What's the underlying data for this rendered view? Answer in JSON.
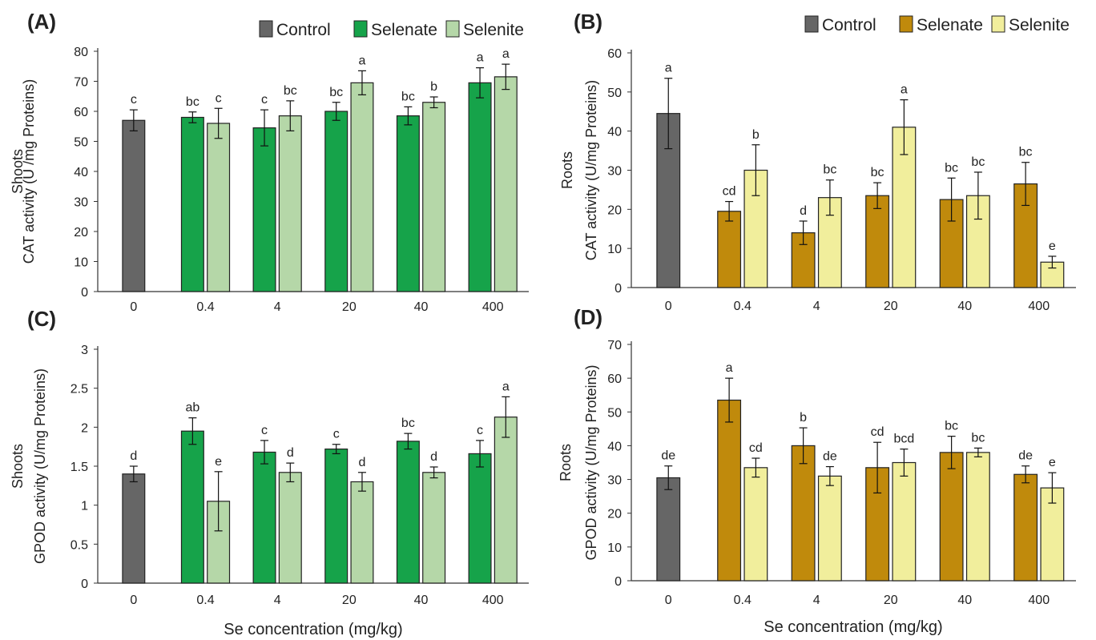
{
  "figure": {
    "xlabel": "Se concentration (mg/kg)",
    "categories": [
      "0",
      "0.4",
      "4",
      "20",
      "40",
      "400"
    ],
    "colors": {
      "control": "#666666",
      "selenate_green": "#16a34a",
      "selenite_green": "#b5d7a8",
      "selenate_brown": "#c08a0c",
      "selenite_yellow": "#f1ee9c",
      "axis": "#333333"
    }
  },
  "chart_data": [
    {
      "id": "A",
      "panel_label": "(A)",
      "type": "bar",
      "ylabel_line1": "Shoots",
      "ylabel_line2": "CAT activity (U /mg Proteins)",
      "ylim": [
        0,
        80
      ],
      "yticks": [
        "0",
        "10",
        "20",
        "30",
        "40",
        "50",
        "60",
        "70",
        "80"
      ],
      "legend": [
        "Control",
        "Selenate",
        "Selenite"
      ],
      "legend_position": "top",
      "control": {
        "value": 57,
        "error": 3.5,
        "letter": "c"
      },
      "series": [
        {
          "name": "Selenate",
          "values": [
            58,
            54.5,
            60,
            58.5,
            69.5
          ],
          "errors": [
            1.8,
            6,
            3,
            3,
            5
          ],
          "letters": [
            "bc",
            "c",
            "bc",
            "bc",
            "a"
          ]
        },
        {
          "name": "Selenite",
          "values": [
            56,
            58.5,
            69.5,
            63,
            71.5
          ],
          "errors": [
            5,
            5,
            4,
            1.8,
            4.2
          ],
          "letters": [
            "c",
            "bc",
            "a",
            "b",
            "a"
          ]
        }
      ]
    },
    {
      "id": "B",
      "panel_label": "(B)",
      "type": "bar",
      "ylabel_line1": "Roots",
      "ylabel_line2": "CAT activity (U/mg Proteins)",
      "ylim": [
        0,
        60
      ],
      "yticks": [
        "0",
        "10",
        "20",
        "30",
        "40",
        "50",
        "60"
      ],
      "legend": [
        "Control",
        "Selenate",
        "Selenite"
      ],
      "legend_position": "top",
      "control": {
        "value": 44.5,
        "error": 9,
        "letter": "a"
      },
      "series": [
        {
          "name": "Selenate",
          "values": [
            19.5,
            14,
            23.5,
            22.5,
            26.5
          ],
          "errors": [
            2.5,
            3,
            3.3,
            5.5,
            5.5
          ],
          "letters": [
            "cd",
            "d",
            "bc",
            "bc",
            "bc"
          ]
        },
        {
          "name": "Selenite",
          "values": [
            30,
            23,
            41,
            23.5,
            6.5
          ],
          "errors": [
            6.5,
            4.5,
            7,
            6,
            1.5
          ],
          "letters": [
            "b",
            "bc",
            "a",
            "bc",
            "e"
          ]
        }
      ]
    },
    {
      "id": "C",
      "panel_label": "(C)",
      "type": "bar",
      "ylabel_line1": "Shoots",
      "ylabel_line2": "GPOD activity (U/mg Proteins)",
      "ylim": [
        0,
        3
      ],
      "yticks": [
        "0",
        "0.5",
        "1",
        "1.5",
        "2",
        "2.5",
        "3"
      ],
      "legend": [],
      "control": {
        "value": 1.4,
        "error": 0.1,
        "letter": "d"
      },
      "series": [
        {
          "name": "Selenate",
          "values": [
            1.95,
            1.68,
            1.72,
            1.82,
            1.66
          ],
          "errors": [
            0.17,
            0.15,
            0.06,
            0.1,
            0.17
          ],
          "letters": [
            "ab",
            "c",
            "c",
            "bc",
            "c"
          ]
        },
        {
          "name": "Selenite",
          "values": [
            1.05,
            1.42,
            1.3,
            1.42,
            2.13
          ],
          "errors": [
            0.38,
            0.12,
            0.12,
            0.07,
            0.26
          ],
          "letters": [
            "e",
            "d",
            "d",
            "d",
            "a"
          ]
        }
      ]
    },
    {
      "id": "D",
      "panel_label": "(D)",
      "type": "bar",
      "ylabel_line1": "Roots",
      "ylabel_line2": "GPOD activity (U/mg Proteins)",
      "ylim": [
        0,
        70
      ],
      "yticks": [
        "0",
        "10",
        "20",
        "30",
        "40",
        "50",
        "60",
        "70"
      ],
      "legend": [],
      "control": {
        "value": 30.5,
        "error": 3.5,
        "letter": "de"
      },
      "series": [
        {
          "name": "Selenate",
          "values": [
            53.5,
            40,
            33.5,
            38,
            31.5
          ],
          "errors": [
            6.5,
            5.3,
            7.5,
            4.8,
            2.5
          ],
          "letters": [
            "a",
            "b",
            "cd",
            "bc",
            "de"
          ]
        },
        {
          "name": "Selenite",
          "values": [
            33.5,
            31,
            35,
            38,
            27.5
          ],
          "errors": [
            2.8,
            2.8,
            4,
            1.3,
            4.5
          ],
          "letters": [
            "cd",
            "de",
            "bcd",
            "bc",
            "e"
          ]
        }
      ]
    }
  ]
}
